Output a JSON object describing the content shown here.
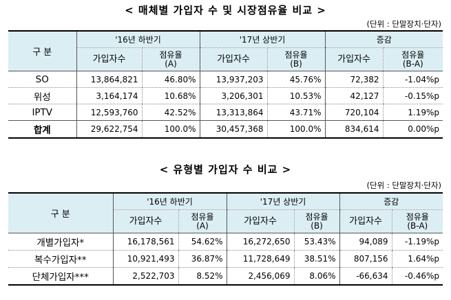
{
  "table1": {
    "title": "< 매체별 가입자 수 및 시장점유율 비교 >",
    "unit": "(단위 : 단말장치·단자)",
    "corner": "구  분",
    "groups": [
      "'16년 하반기",
      "'17년 상반기",
      "증감"
    ],
    "sub_subscribers": "가입자수",
    "sub_share_a": [
      "점유율",
      "(A)"
    ],
    "sub_share_b": [
      "점유율",
      "(B)"
    ],
    "sub_share_diff": [
      "점유율",
      "(B-A)"
    ],
    "rows": [
      {
        "label": "SO",
        "c1": "13,864,821",
        "c2": "46.80%",
        "c3": "13,937,203",
        "c4": "45.76%",
        "c5": "72,382",
        "c6": "-1.04%p"
      },
      {
        "label": "위성",
        "c1": "3,164,174",
        "c2": "10.68%",
        "c3": "3,206,301",
        "c4": "10.53%",
        "c5": "42,127",
        "c6": "-0.15%p"
      },
      {
        "label": "IPTV",
        "c1": "12,593,760",
        "c2": "42.52%",
        "c3": "13,313,864",
        "c4": "43.71%",
        "c5": "720,104",
        "c6": "1.19%p"
      },
      {
        "label": "합계",
        "c1": "29,622,754",
        "c2": "100.0%",
        "c3": "30,457,368",
        "c4": "100.0%",
        "c5": "834,614",
        "c6": "0.00%p"
      }
    ]
  },
  "table2": {
    "title": "< 유형별 가입자 수 비교 >",
    "unit": "(단위 : 단말장치·단자)",
    "corner": "구  분",
    "groups": [
      "'16년 하반기",
      "'17년 상반기",
      "증감"
    ],
    "sub_subscribers": "가입자수",
    "sub_share_a": [
      "점유율",
      "(A)"
    ],
    "sub_share_b": [
      "점유율",
      "(B)"
    ],
    "sub_share_diff": [
      "점유율",
      "(B-A)"
    ],
    "rows": [
      {
        "label": "개별가입자*",
        "c1": "16,178,561",
        "c2": "54.62%",
        "c3": "16,272,650",
        "c4": "53.43%",
        "c5": "94,089",
        "c6": "-1.19%p"
      },
      {
        "label": "복수가입자**",
        "c1": "10,921,493",
        "c2": "36.87%",
        "c3": "11,728,649",
        "c4": "38.51%",
        "c5": "807,156",
        "c6": "1.64%p"
      },
      {
        "label": "단체가입자***",
        "c1": "2,522,703",
        "c2": "8.52%",
        "c3": "2,456,069",
        "c4": "8.06%",
        "c5": "-66,634",
        "c6": "-0.46%p"
      }
    ]
  }
}
